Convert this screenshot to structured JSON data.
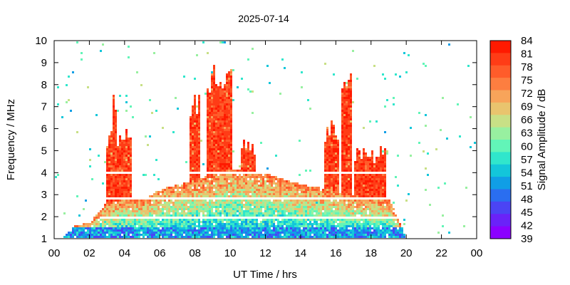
{
  "chart_data": {
    "type": "heatmap",
    "title": "2025-07-14",
    "xlabel": "UT Time / hrs",
    "ylabel": "Frequency / MHz",
    "xlim": [
      0,
      24
    ],
    "ylim": [
      1,
      10
    ],
    "x_ticks": [
      "00",
      "02",
      "04",
      "06",
      "08",
      "10",
      "12",
      "14",
      "16",
      "18",
      "20",
      "22",
      "00"
    ],
    "y_ticks": [
      "1",
      "2",
      "3",
      "4",
      "5",
      "6",
      "7",
      "8",
      "9",
      "10"
    ],
    "colorbar": {
      "label": "Signal Amplitude / dB",
      "min": 39,
      "max": 84,
      "ticks": [
        "84",
        "81",
        "78",
        "75",
        "72",
        "69",
        "66",
        "63",
        "60",
        "57",
        "54",
        "51",
        "48",
        "45",
        "42",
        "39"
      ],
      "colors": [
        "#ff1a00",
        "#ff3c16",
        "#ff5c2a",
        "#fd7e40",
        "#f8a45a",
        "#e9c46e",
        "#c8e086",
        "#98f0a0",
        "#62f5b8",
        "#30e6cc",
        "#13c6da",
        "#109ee6",
        "#2a6ef0",
        "#4b44f4",
        "#6a22f8",
        "#8b00ff"
      ]
    },
    "envelope": {
      "base_upper_mhz": [
        [
          0.3,
          1.0
        ],
        [
          1.0,
          1.6
        ],
        [
          2.0,
          1.8
        ],
        [
          2.8,
          2.6
        ],
        [
          4.0,
          2.9
        ],
        [
          5.0,
          2.8
        ],
        [
          6.0,
          3.3
        ],
        [
          7.5,
          3.6
        ],
        [
          10.0,
          4.2
        ],
        [
          12.0,
          4.0
        ],
        [
          14.0,
          3.5
        ],
        [
          15.5,
          3.3
        ],
        [
          17.0,
          3.0
        ],
        [
          19.0,
          2.8
        ],
        [
          20.0,
          1.0
        ]
      ],
      "spikes": [
        {
          "hour_start": 2.9,
          "hour_end": 4.4,
          "top_mhz": 6.1
        },
        {
          "hour_start": 3.3,
          "hour_end": 3.45,
          "top_mhz": 8.0
        },
        {
          "hour_start": 7.6,
          "hour_end": 8.2,
          "top_mhz": 7.6
        },
        {
          "hour_start": 8.6,
          "hour_end": 10.0,
          "top_mhz": 9.0
        },
        {
          "hour_start": 10.5,
          "hour_end": 11.4,
          "top_mhz": 5.6
        },
        {
          "hour_start": 15.3,
          "hour_end": 16.1,
          "top_mhz": 6.4
        },
        {
          "hour_start": 16.2,
          "hour_end": 16.8,
          "top_mhz": 9.0
        },
        {
          "hour_start": 17.0,
          "hour_end": 18.8,
          "top_mhz": 5.3
        }
      ],
      "gap_lines_mhz": [
        2.0,
        2.9,
        4.0
      ]
    }
  }
}
